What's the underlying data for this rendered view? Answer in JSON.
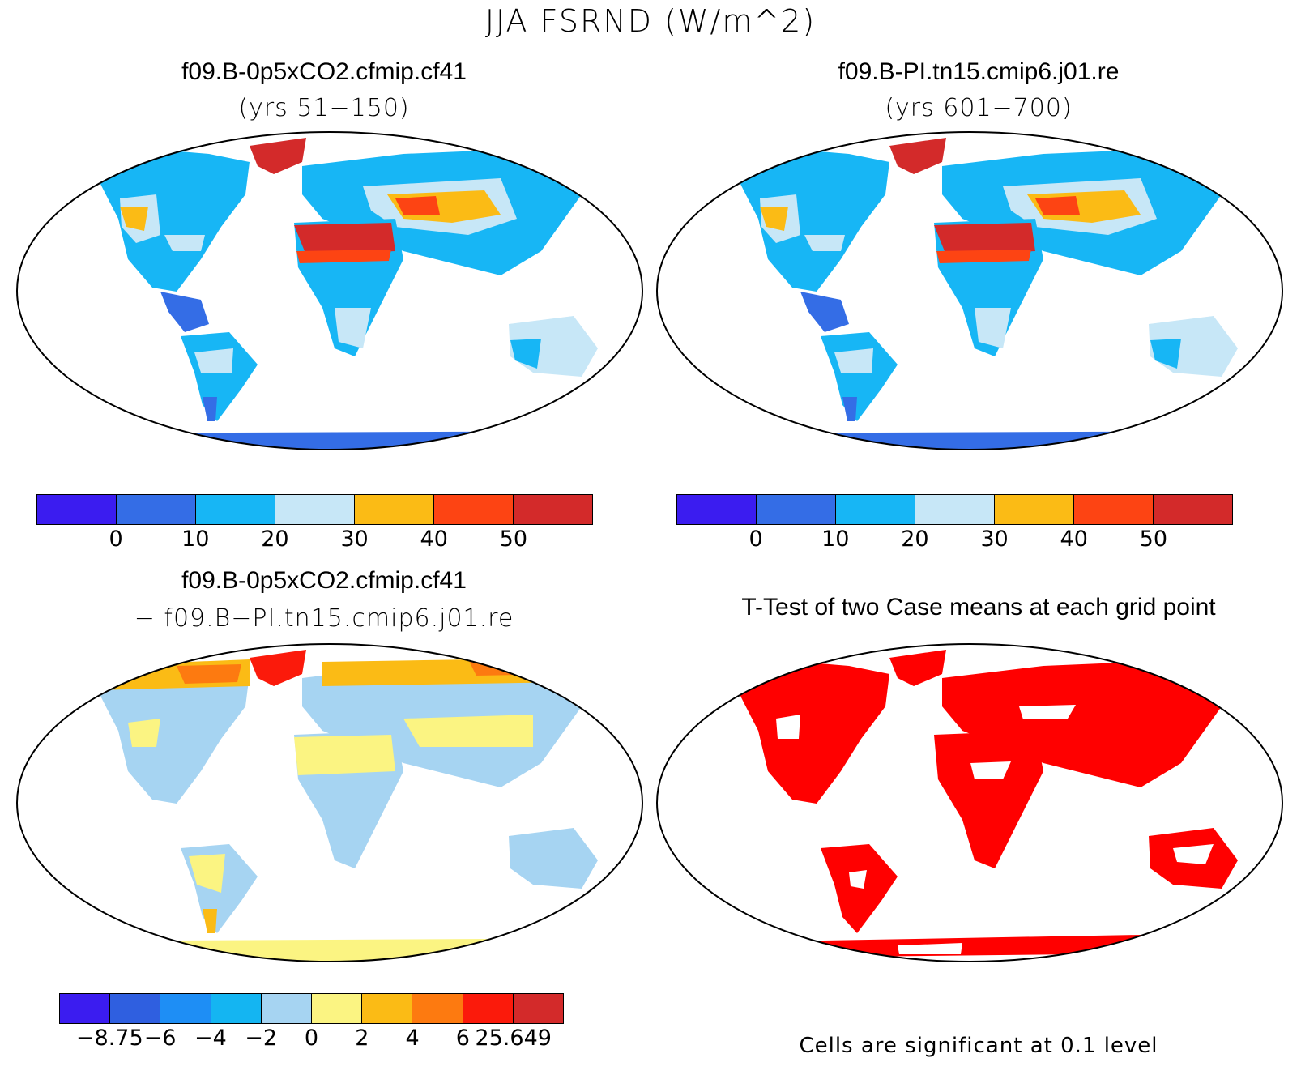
{
  "title": "JJA FSRND (W/m^2)",
  "panels": {
    "top_left": {
      "title": "f09.B-0p5xCO2.cfmip.cf41",
      "subtitle": "(yrs 51−150)"
    },
    "top_right": {
      "title": "f09.B-PI.tn15.cmip6.j01.re",
      "subtitle": "(yrs 601−700)"
    },
    "bottom_left": {
      "title": "f09.B-0p5xCO2.cfmip.cf41",
      "subtitle": "− f09.B−PI.tn15.cmip6.j01.re"
    },
    "bottom_right": {
      "title": "T-Test of two Case means at each grid point"
    }
  },
  "colors": {
    "top_scale": [
      "#3b1cf0",
      "#346de6",
      "#17b6f5",
      "#c7e7f7",
      "#fbbb15",
      "#fd4413",
      "#d32a2a"
    ],
    "diff_scale": [
      "#3b1cf0",
      "#2f5fe0",
      "#1e8ef5",
      "#14b5f2",
      "#a6d4f2",
      "#fbf482",
      "#fbbb15",
      "#fd7a10",
      "#fb1a0b",
      "#d32a2a"
    ],
    "significant": "#ff0000",
    "greenland_tl": "#d32a2a"
  },
  "colorbar_top": {
    "labels": [
      "0",
      "10",
      "20",
      "30",
      "40",
      "50"
    ]
  },
  "colorbar_diff": {
    "labels": [
      "−8.75",
      "−6",
      "−4",
      "−2",
      "0",
      "2",
      "4",
      "6",
      "25.649"
    ]
  },
  "significance_note": "Cells are significant at 0.1 level"
}
